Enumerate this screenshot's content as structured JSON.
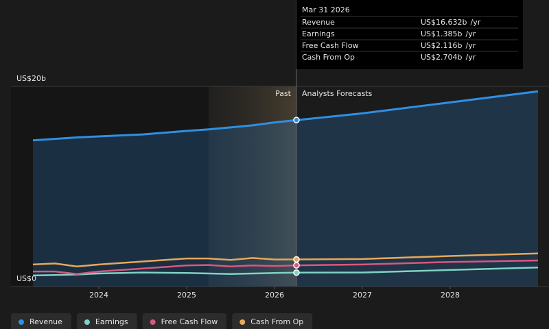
{
  "chart_data": {
    "type": "line",
    "x": [
      2023.25,
      2023.5,
      2023.75,
      2024,
      2024.5,
      2025,
      2025.25,
      2025.5,
      2025.75,
      2026,
      2026.25,
      2027,
      2028,
      2029
    ],
    "xlim": [
      2023,
      2029.125
    ],
    "xticks": [
      2024,
      2025,
      2026,
      2027,
      2028
    ],
    "ylim": [
      0,
      20
    ],
    "yticks": [
      {
        "value": 0,
        "label": "US$0"
      },
      {
        "value": 20,
        "label": "US$20b"
      }
    ],
    "grid": true,
    "highlight_start": 2025.25,
    "forecast_start": 2026.25,
    "past_label": "Past",
    "forecast_label": "Analysts Forecasts",
    "legend": "bottom",
    "series": [
      {
        "name": "Revenue",
        "color": "#2f8fe3",
        "area": true,
        "values": [
          14.6,
          14.75,
          14.9,
          15.0,
          15.2,
          15.55,
          15.7,
          15.9,
          16.1,
          16.4,
          16.632,
          17.3,
          18.4,
          19.5
        ]
      },
      {
        "name": "Earnings",
        "color": "#7fd3c4",
        "values": [
          1.1,
          1.15,
          1.2,
          1.3,
          1.4,
          1.35,
          1.3,
          1.25,
          1.3,
          1.35,
          1.385,
          1.4,
          1.65,
          1.9
        ]
      },
      {
        "name": "Free Cash Flow",
        "color": "#d9587f",
        "values": [
          1.5,
          1.5,
          1.25,
          1.5,
          1.8,
          2.1,
          2.15,
          2.0,
          2.1,
          2.05,
          2.116,
          2.2,
          2.45,
          2.6
        ]
      },
      {
        "name": "Cash From Op",
        "color": "#e8a85a",
        "values": [
          2.2,
          2.3,
          2.0,
          2.2,
          2.5,
          2.8,
          2.8,
          2.65,
          2.85,
          2.7,
          2.704,
          2.75,
          3.05,
          3.3
        ]
      }
    ],
    "tooltip": {
      "index": 10,
      "title": "Mar 31 2026",
      "value_labels": [
        "US$16.632b",
        "US$1.385b",
        "US$2.116b",
        "US$2.704b"
      ],
      "unit": "/yr"
    }
  }
}
